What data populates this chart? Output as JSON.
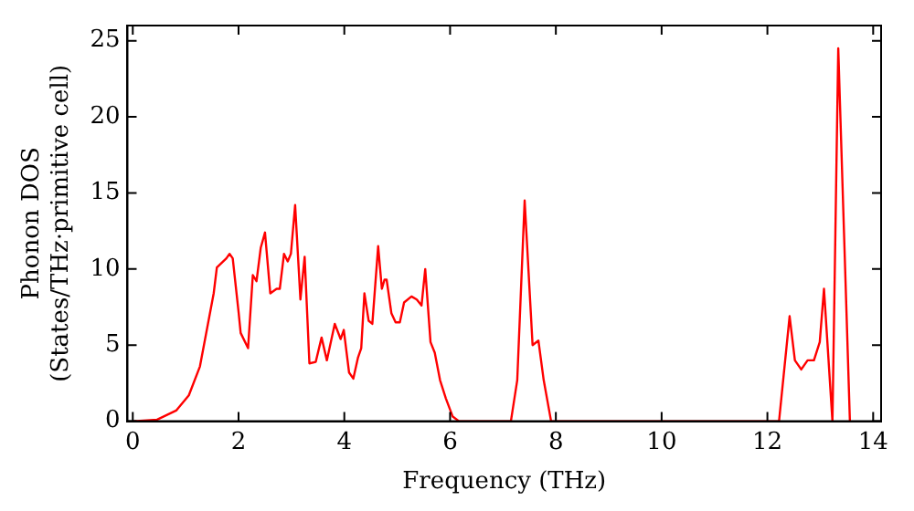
{
  "chart_data": {
    "type": "line",
    "xlabel": "Frequency (THz)",
    "ylabel": "Phonon DOS\n(States/THz·primitive cell)",
    "x": [
      0,
      0.46,
      0.82,
      1.06,
      1.27,
      1.53,
      1.59,
      1.77,
      1.83,
      1.89,
      2.0,
      2.04,
      2.18,
      2.27,
      2.34,
      2.42,
      2.5,
      2.6,
      2.72,
      2.78,
      2.86,
      2.93,
      2.99,
      3.07,
      3.17,
      3.25,
      3.34,
      3.46,
      3.57,
      3.67,
      3.82,
      3.93,
      3.99,
      4.09,
      4.17,
      4.26,
      4.32,
      4.38,
      4.46,
      4.53,
      4.64,
      4.71,
      4.76,
      4.8,
      4.89,
      4.97,
      5.05,
      5.13,
      5.27,
      5.37,
      5.46,
      5.53,
      5.63,
      5.71,
      5.81,
      5.92,
      6.05,
      6.17,
      7.15,
      7.27,
      7.41,
      7.56,
      7.67,
      7.77,
      7.91,
      12.22,
      12.42,
      12.52,
      12.64,
      12.76,
      12.88,
      12.99,
      13.07,
      13.23,
      13.34,
      13.56
    ],
    "series": [
      {
        "color": "#ff0000",
        "values": [
          0,
          0.1,
          0.7,
          1.7,
          3.6,
          8.4,
          10.1,
          10.7,
          11.0,
          10.7,
          7.2,
          5.8,
          4.8,
          9.6,
          9.2,
          11.4,
          12.4,
          8.4,
          8.7,
          8.7,
          11.0,
          10.5,
          11.0,
          14.2,
          8.0,
          10.8,
          3.8,
          3.9,
          5.5,
          4.0,
          6.4,
          5.4,
          6.0,
          3.2,
          2.8,
          4.2,
          4.8,
          8.4,
          6.6,
          6.4,
          11.5,
          8.7,
          9.3,
          9.3,
          7.1,
          6.5,
          6.5,
          7.8,
          8.2,
          8.0,
          7.6,
          10.0,
          5.2,
          4.5,
          2.7,
          1.5,
          0.3,
          0,
          0,
          2.7,
          14.5,
          5.0,
          5.3,
          2.7,
          0,
          0,
          6.9,
          4.0,
          3.4,
          4.0,
          4.0,
          5.2,
          8.7,
          0,
          24.5,
          0
        ]
      }
    ],
    "xlim": [
      -0.1,
      14.15
    ],
    "ylim": [
      0,
      26
    ],
    "xticks": [
      0,
      2,
      4,
      6,
      8,
      10,
      12,
      14
    ],
    "yticks": [
      0,
      5,
      10,
      15,
      20,
      25
    ],
    "grid": false,
    "legend": false,
    "marker": "none",
    "line_style": "solid"
  }
}
